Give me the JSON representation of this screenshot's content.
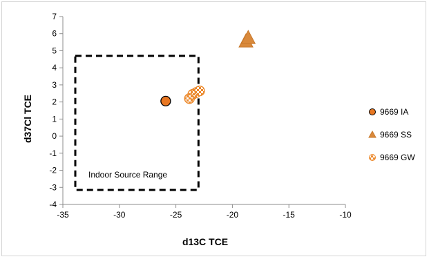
{
  "chart_data": {
    "type": "scatter",
    "xlabel": "d13C TCE",
    "ylabel": "d37Cl TCE",
    "xlim": [
      -35,
      -10
    ],
    "ylim": [
      -4,
      7
    ],
    "xticks": [
      -35,
      -30,
      -25,
      -20,
      -15,
      -10
    ],
    "yticks": [
      -4,
      -3,
      -2,
      -1,
      0,
      1,
      2,
      3,
      4,
      5,
      6,
      7
    ],
    "grid": false,
    "legend_position": "right",
    "series": [
      {
        "name": "9669 IA",
        "marker": "circle",
        "color": "#e87722",
        "edge": "#000000",
        "points": [
          {
            "x": -25.9,
            "y": 2.05
          }
        ]
      },
      {
        "name": "9669 SS",
        "marker": "triangle",
        "color": "#d9893b",
        "edge": "#c8782b",
        "points": [
          {
            "x": -18.8,
            "y": 5.6
          },
          {
            "x": -18.6,
            "y": 5.8
          }
        ]
      },
      {
        "name": "9669 GW",
        "marker": "checkered-circle",
        "color": "#ec8a2e",
        "edge": "#ec8a2e",
        "points": [
          {
            "x": -23.8,
            "y": 2.2
          },
          {
            "x": -23.5,
            "y": 2.45
          },
          {
            "x": -23.2,
            "y": 2.55
          },
          {
            "x": -22.9,
            "y": 2.65
          }
        ]
      }
    ],
    "annotations": [
      {
        "type": "dashed-rectangle",
        "label": "Indoor Source Range",
        "x_range": [
          -33.9,
          -23.0
        ],
        "y_range": [
          -3.15,
          4.7
        ]
      }
    ]
  }
}
